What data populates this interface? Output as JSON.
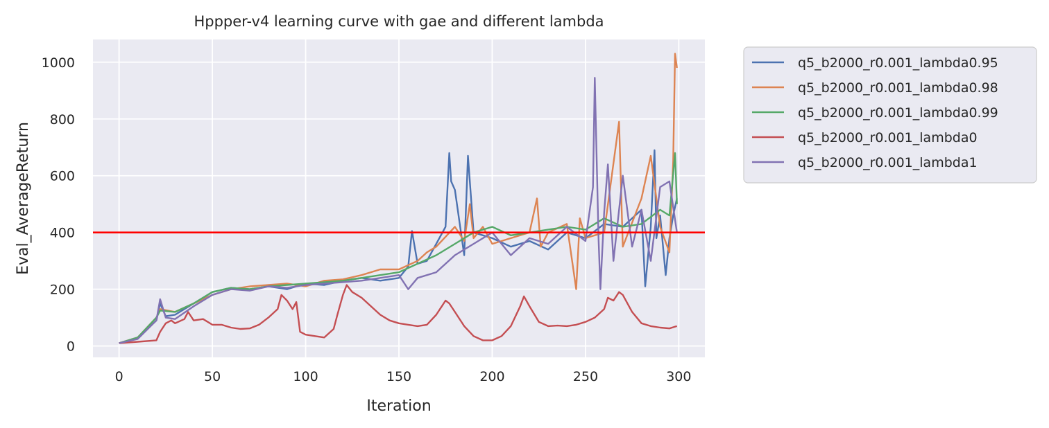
{
  "chart_data": {
    "type": "line",
    "title": "Hppper-v4 learning curve with gae and different lambda",
    "xlabel": "Iteration",
    "ylabel": "Eval_AverageReturn",
    "xlim": [
      -14,
      314
    ],
    "ylim": [
      -40,
      1080
    ],
    "xticks": [
      0,
      50,
      100,
      150,
      200,
      250,
      300
    ],
    "yticks": [
      0,
      200,
      400,
      600,
      800,
      1000
    ],
    "grid": true,
    "legend_position": "outside-right",
    "reference_line": {
      "y": 400,
      "color": "#ff0000"
    },
    "series": [
      {
        "name": "q5_b2000_r0.001_lambda0.95",
        "color": "#4c72b0",
        "x": [
          0,
          10,
          20,
          22,
          25,
          30,
          40,
          50,
          60,
          70,
          80,
          90,
          100,
          110,
          120,
          130,
          140,
          150,
          155,
          157,
          160,
          165,
          170,
          175,
          177,
          178,
          180,
          185,
          187,
          190,
          200,
          210,
          220,
          230,
          240,
          250,
          260,
          270,
          280,
          282,
          285,
          287,
          288,
          290,
          293,
          295,
          297,
          299
        ],
        "y": [
          10,
          30,
          90,
          150,
          105,
          110,
          150,
          190,
          205,
          200,
          210,
          200,
          220,
          215,
          230,
          240,
          230,
          240,
          280,
          405,
          290,
          300,
          360,
          420,
          680,
          580,
          550,
          320,
          670,
          400,
          380,
          350,
          370,
          340,
          400,
          380,
          430,
          420,
          480,
          210,
          420,
          690,
          380,
          460,
          250,
          380,
          460,
          520
        ]
      },
      {
        "name": "q5_b2000_r0.001_lambda0.98",
        "color": "#dd8452",
        "x": [
          0,
          10,
          20,
          22,
          30,
          40,
          50,
          60,
          70,
          80,
          90,
          100,
          110,
          120,
          130,
          140,
          150,
          160,
          165,
          170,
          180,
          185,
          188,
          190,
          195,
          200,
          210,
          220,
          224,
          226,
          230,
          240,
          245,
          247,
          250,
          260,
          268,
          270,
          280,
          285,
          290,
          295,
          297,
          298,
          299
        ],
        "y": [
          10,
          30,
          100,
          130,
          120,
          150,
          180,
          200,
          210,
          215,
          220,
          210,
          230,
          235,
          250,
          270,
          270,
          300,
          330,
          350,
          420,
          370,
          500,
          380,
          420,
          360,
          380,
          400,
          520,
          350,
          400,
          430,
          200,
          450,
          380,
          400,
          790,
          350,
          520,
          670,
          420,
          330,
          650,
          1030,
          980
        ]
      },
      {
        "name": "q5_b2000_r0.001_lambda0.99",
        "color": "#55a868",
        "x": [
          0,
          10,
          20,
          22,
          30,
          40,
          50,
          60,
          70,
          80,
          90,
          100,
          110,
          120,
          130,
          140,
          150,
          160,
          170,
          180,
          190,
          200,
          210,
          220,
          230,
          240,
          250,
          260,
          270,
          280,
          290,
          295,
          298,
          299
        ],
        "y": [
          10,
          30,
          100,
          125,
          120,
          150,
          190,
          205,
          200,
          210,
          215,
          220,
          225,
          230,
          240,
          250,
          260,
          290,
          320,
          360,
          400,
          420,
          390,
          400,
          410,
          420,
          410,
          450,
          420,
          430,
          480,
          460,
          680,
          500
        ]
      },
      {
        "name": "q5_b2000_r0.001_lambda0",
        "color": "#c44e52",
        "x": [
          0,
          10,
          20,
          22,
          25,
          28,
          30,
          35,
          37,
          40,
          45,
          50,
          55,
          60,
          65,
          70,
          75,
          80,
          85,
          87,
          90,
          93,
          95,
          97,
          100,
          105,
          110,
          115,
          117,
          120,
          122,
          125,
          130,
          135,
          140,
          145,
          150,
          155,
          160,
          165,
          170,
          175,
          177,
          180,
          185,
          190,
          195,
          200,
          205,
          210,
          215,
          217,
          220,
          225,
          230,
          235,
          240,
          245,
          250,
          255,
          260,
          262,
          265,
          268,
          270,
          275,
          280,
          285,
          290,
          295,
          299
        ],
        "y": [
          10,
          15,
          20,
          50,
          80,
          90,
          80,
          95,
          120,
          90,
          95,
          75,
          75,
          65,
          60,
          62,
          75,
          100,
          130,
          180,
          160,
          130,
          155,
          50,
          40,
          35,
          30,
          60,
          110,
          180,
          215,
          190,
          170,
          140,
          110,
          90,
          80,
          75,
          70,
          75,
          110,
          160,
          150,
          120,
          70,
          35,
          20,
          20,
          35,
          70,
          140,
          175,
          140,
          85,
          70,
          72,
          70,
          75,
          85,
          100,
          130,
          170,
          160,
          190,
          180,
          120,
          80,
          70,
          65,
          62,
          70
        ]
      },
      {
        "name": "q5_b2000_r0.001_lambda1",
        "color": "#8172b2",
        "x": [
          0,
          10,
          20,
          22,
          25,
          30,
          40,
          50,
          60,
          70,
          80,
          90,
          100,
          110,
          120,
          130,
          140,
          150,
          155,
          160,
          170,
          180,
          190,
          200,
          210,
          220,
          230,
          240,
          250,
          254,
          255,
          257,
          258,
          260,
          262,
          265,
          270,
          275,
          280,
          285,
          290,
          295,
          299
        ],
        "y": [
          10,
          25,
          90,
          165,
          100,
          95,
          140,
          180,
          200,
          195,
          210,
          205,
          215,
          220,
          225,
          230,
          240,
          250,
          200,
          240,
          260,
          320,
          360,
          400,
          320,
          380,
          360,
          420,
          370,
          560,
          945,
          380,
          200,
          470,
          640,
          300,
          600,
          350,
          480,
          300,
          560,
          580,
          400
        ]
      }
    ]
  }
}
